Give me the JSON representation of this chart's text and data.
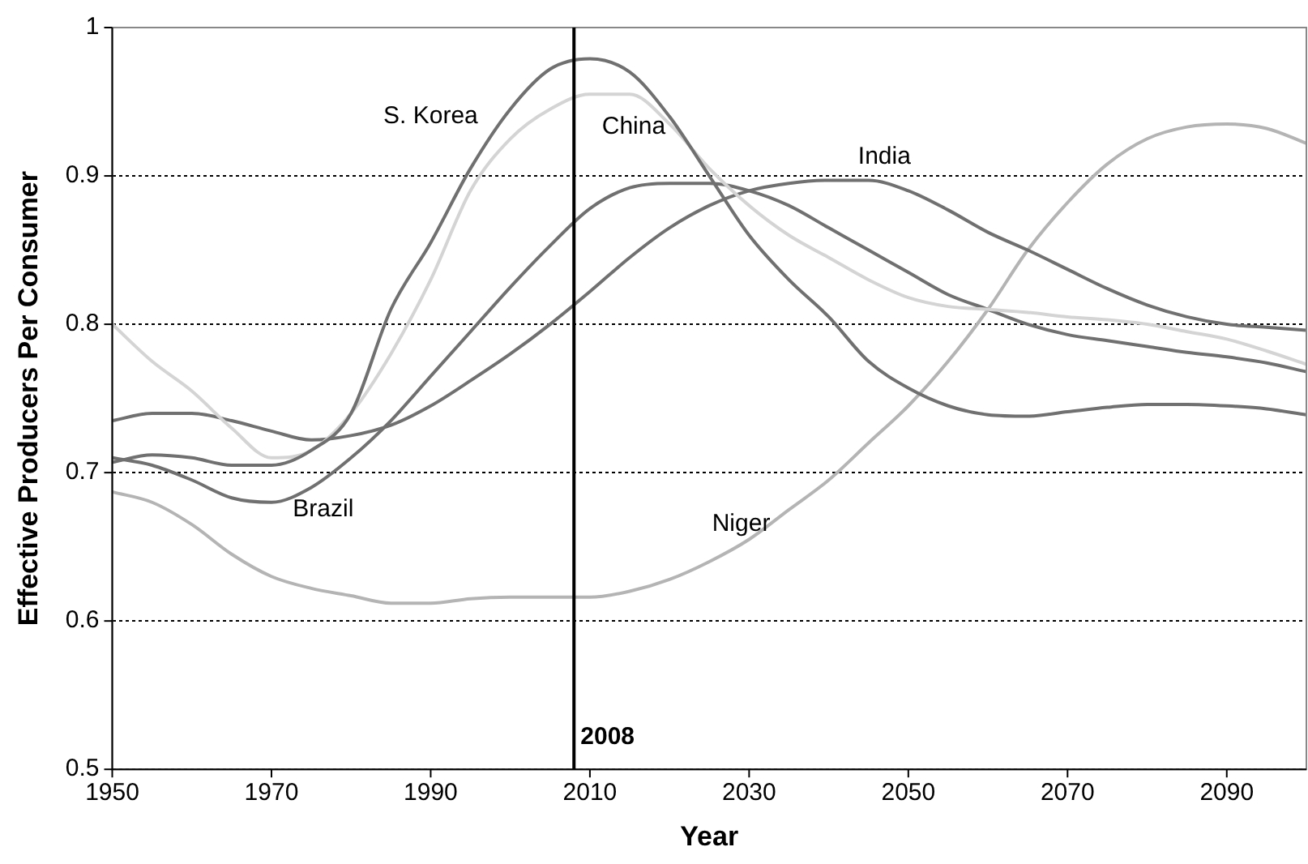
{
  "chart_data": {
    "type": "line",
    "xlabel": "Year",
    "ylabel": "Effective Producers Per Consumer",
    "x": [
      1950,
      1955,
      1960,
      1965,
      1970,
      1975,
      1980,
      1985,
      1990,
      1995,
      2000,
      2005,
      2010,
      2015,
      2020,
      2025,
      2030,
      2035,
      2040,
      2045,
      2050,
      2055,
      2060,
      2065,
      2070,
      2075,
      2080,
      2085,
      2090,
      2095,
      2100
    ],
    "xlim": [
      1950,
      2100
    ],
    "xticks": [
      1950,
      1970,
      1990,
      2010,
      2030,
      2050,
      2070,
      2090
    ],
    "ylim": [
      0.5,
      1
    ],
    "yticks": [
      0.5,
      0.6,
      0.7,
      0.8,
      0.9,
      1
    ],
    "grid": "y",
    "legend": false,
    "marker": "none",
    "line_style": "solid",
    "ref_lines": [
      {
        "axis": "x",
        "value": 2008,
        "label": "2008",
        "color": "#000000"
      }
    ],
    "series": [
      {
        "name": "S. Korea",
        "color": "#707070",
        "values": [
          0.707,
          0.712,
          0.71,
          0.705,
          0.705,
          0.715,
          0.74,
          0.81,
          0.855,
          0.905,
          0.945,
          0.972,
          0.979,
          0.97,
          0.94,
          0.9,
          0.86,
          0.83,
          0.805,
          0.775,
          0.757,
          0.745,
          0.739,
          0.738,
          0.741,
          0.744,
          0.746,
          0.746,
          0.745,
          0.743,
          0.739
        ]
      },
      {
        "name": "China",
        "color": "#d4d4d4",
        "values": [
          0.8,
          0.775,
          0.755,
          0.73,
          0.71,
          0.715,
          0.74,
          0.78,
          0.83,
          0.89,
          0.925,
          0.945,
          0.955,
          0.955,
          0.935,
          0.905,
          0.88,
          0.86,
          0.845,
          0.83,
          0.818,
          0.812,
          0.81,
          0.808,
          0.805,
          0.803,
          0.8,
          0.795,
          0.79,
          0.782,
          0.773
        ]
      },
      {
        "name": "India",
        "color": "#707070",
        "values": [
          0.735,
          0.74,
          0.74,
          0.735,
          0.728,
          0.722,
          0.725,
          0.732,
          0.745,
          0.762,
          0.78,
          0.8,
          0.822,
          0.845,
          0.865,
          0.88,
          0.89,
          0.895,
          0.897,
          0.897,
          0.89,
          0.877,
          0.862,
          0.85,
          0.837,
          0.824,
          0.813,
          0.805,
          0.8,
          0.798,
          0.796
        ]
      },
      {
        "name": "Brazil",
        "color": "#707070",
        "values": [
          0.71,
          0.705,
          0.695,
          0.683,
          0.68,
          0.69,
          0.71,
          0.735,
          0.765,
          0.795,
          0.825,
          0.853,
          0.878,
          0.892,
          0.895,
          0.895,
          0.89,
          0.88,
          0.865,
          0.85,
          0.835,
          0.82,
          0.81,
          0.8,
          0.793,
          0.789,
          0.785,
          0.781,
          0.778,
          0.774,
          0.768
        ]
      },
      {
        "name": "Niger",
        "color": "#b4b4b4",
        "values": [
          0.687,
          0.68,
          0.665,
          0.645,
          0.63,
          0.622,
          0.617,
          0.612,
          0.612,
          0.615,
          0.616,
          0.616,
          0.616,
          0.62,
          0.628,
          0.64,
          0.655,
          0.675,
          0.695,
          0.72,
          0.745,
          0.775,
          0.81,
          0.85,
          0.882,
          0.908,
          0.925,
          0.933,
          0.935,
          0.932,
          0.922
        ]
      }
    ]
  }
}
